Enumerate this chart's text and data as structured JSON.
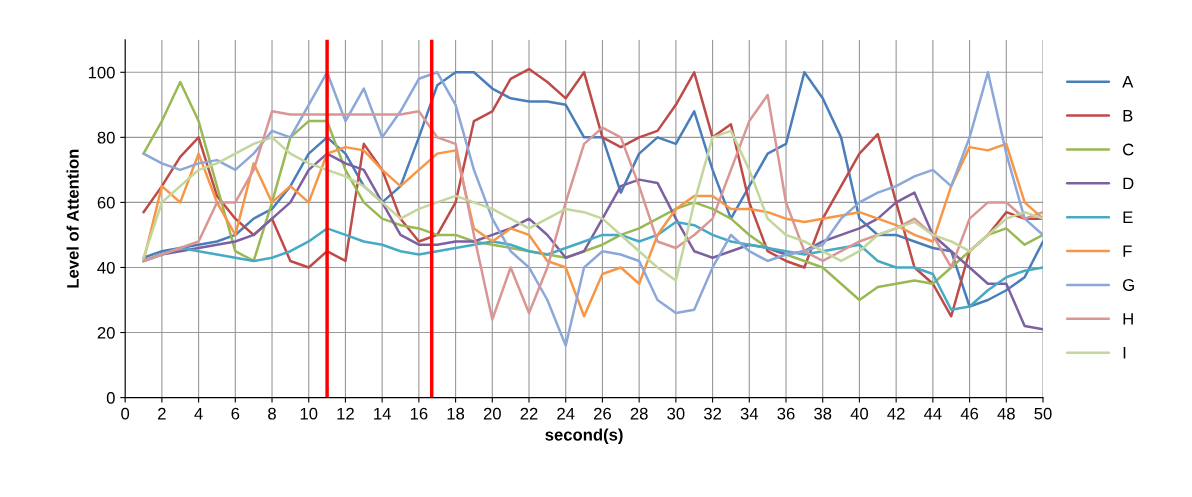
{
  "chart_data": {
    "type": "line",
    "xlabel": "second(s)",
    "ylabel": "Level of Attention",
    "x": [
      1,
      2,
      3,
      4,
      5,
      6,
      7,
      8,
      9,
      10,
      11,
      12,
      13,
      14,
      15,
      16,
      17,
      18,
      19,
      20,
      21,
      22,
      23,
      24,
      25,
      26,
      27,
      28,
      29,
      30,
      31,
      32,
      33,
      34,
      35,
      36,
      37,
      38,
      39,
      40,
      41,
      42,
      43,
      44,
      45,
      46,
      47,
      48,
      49,
      50
    ],
    "xlim": [
      0,
      50
    ],
    "xticks": [
      0,
      2,
      4,
      6,
      8,
      10,
      12,
      14,
      16,
      18,
      20,
      22,
      24,
      26,
      28,
      30,
      32,
      34,
      36,
      38,
      40,
      42,
      44,
      46,
      48,
      50
    ],
    "ylim": [
      0,
      110
    ],
    "yticks": [
      0,
      20,
      40,
      60,
      80,
      100
    ],
    "grid": true,
    "legend": "right",
    "marker": "none",
    "line_style": "solid",
    "series": [
      {
        "name": "A",
        "color": "#4a7ebb",
        "values": [
          43,
          45,
          46,
          47,
          48,
          50,
          55,
          58,
          65,
          75,
          80,
          75,
          65,
          60,
          65,
          80,
          96,
          100,
          100,
          95,
          92,
          91,
          91,
          90,
          80,
          80,
          63,
          75,
          80,
          78,
          88,
          70,
          55,
          65,
          75,
          78,
          100,
          92,
          80,
          55,
          50,
          50,
          48,
          46,
          45,
          28,
          30,
          33,
          37,
          48
        ]
      },
      {
        "name": "B",
        "color": "#be4b48",
        "values": [
          57,
          65,
          74,
          80,
          62,
          55,
          50,
          55,
          42,
          40,
          45,
          42,
          78,
          70,
          55,
          48,
          50,
          60,
          85,
          88,
          98,
          101,
          97,
          92,
          100,
          80,
          77,
          80,
          82,
          90,
          100,
          80,
          84,
          60,
          45,
          42,
          40,
          55,
          65,
          75,
          81,
          60,
          40,
          35,
          25,
          45,
          50,
          57,
          55,
          55
        ]
      },
      {
        "name": "C",
        "color": "#98b954",
        "values": [
          75,
          85,
          97,
          85,
          65,
          45,
          42,
          60,
          80,
          85,
          85,
          70,
          60,
          55,
          53,
          52,
          50,
          50,
          48,
          47,
          46,
          45,
          44,
          43,
          45,
          47,
          50,
          52,
          55,
          58,
          60,
          58,
          55,
          50,
          46,
          44,
          42,
          40,
          35,
          30,
          34,
          35,
          36,
          35,
          40,
          45,
          50,
          52,
          47,
          50
        ]
      },
      {
        "name": "D",
        "color": "#7d60a0",
        "values": [
          42,
          44,
          45,
          46,
          47,
          48,
          50,
          55,
          60,
          70,
          75,
          72,
          70,
          60,
          50,
          47,
          47,
          48,
          48,
          50,
          52,
          55,
          50,
          43,
          45,
          55,
          65,
          67,
          66,
          55,
          45,
          43,
          45,
          47,
          46,
          44,
          45,
          48,
          50,
          52,
          55,
          60,
          63,
          50,
          45,
          40,
          35,
          35,
          22,
          21
        ]
      },
      {
        "name": "E",
        "color": "#46aac5",
        "values": [
          42,
          44,
          46,
          45,
          44,
          43,
          42,
          43,
          45,
          48,
          52,
          50,
          48,
          47,
          45,
          44,
          45,
          46,
          47,
          48,
          47,
          45,
          44,
          46,
          48,
          50,
          50,
          48,
          50,
          54,
          53,
          50,
          48,
          47,
          46,
          45,
          44,
          45,
          46,
          47,
          42,
          40,
          40,
          38,
          27,
          28,
          33,
          37,
          39,
          40
        ]
      },
      {
        "name": "F",
        "color": "#f79646",
        "values": [
          42,
          65,
          60,
          75,
          60,
          50,
          72,
          60,
          65,
          60,
          75,
          77,
          76,
          70,
          65,
          70,
          75,
          76,
          52,
          48,
          52,
          50,
          42,
          40,
          25,
          38,
          40,
          35,
          50,
          58,
          62,
          62,
          58,
          58,
          57,
          55,
          54,
          55,
          56,
          57,
          55,
          53,
          50,
          48,
          65,
          77,
          76,
          78,
          60,
          55
        ]
      },
      {
        "name": "G",
        "color": "#8ba8d8",
        "values": [
          75,
          72,
          70,
          72,
          73,
          70,
          75,
          82,
          80,
          90,
          100,
          85,
          95,
          80,
          88,
          98,
          100,
          90,
          70,
          55,
          45,
          40,
          30,
          16,
          40,
          45,
          44,
          42,
          30,
          26,
          27,
          40,
          50,
          45,
          42,
          44,
          45,
          47,
          55,
          60,
          63,
          65,
          68,
          70,
          65,
          80,
          100,
          75,
          55,
          50
        ]
      },
      {
        "name": "H",
        "color": "#d99694",
        "values": [
          42,
          44,
          46,
          48,
          60,
          60,
          70,
          88,
          87,
          87,
          87,
          87,
          87,
          87,
          87,
          88,
          80,
          78,
          50,
          24,
          40,
          26,
          40,
          60,
          78,
          83,
          80,
          65,
          48,
          46,
          50,
          55,
          70,
          85,
          93,
          60,
          45,
          42,
          45,
          48,
          50,
          52,
          55,
          50,
          40,
          55,
          60,
          60,
          55,
          57
        ]
      },
      {
        "name": "I",
        "color": "#c3d69b",
        "values": [
          43,
          60,
          65,
          70,
          72,
          75,
          78,
          80,
          75,
          72,
          70,
          68,
          65,
          60,
          55,
          58,
          60,
          62,
          60,
          58,
          55,
          52,
          55,
          58,
          57,
          55,
          50,
          45,
          40,
          36,
          60,
          80,
          82,
          70,
          55,
          50,
          48,
          45,
          42,
          45,
          50,
          52,
          54,
          50,
          48,
          45,
          50,
          55,
          57,
          55
        ]
      }
    ],
    "ref_lines": [
      {
        "axis": "x",
        "value": 11,
        "color": "#ff0000"
      },
      {
        "axis": "x",
        "value": 16.7,
        "color": "#ff0000"
      }
    ]
  }
}
